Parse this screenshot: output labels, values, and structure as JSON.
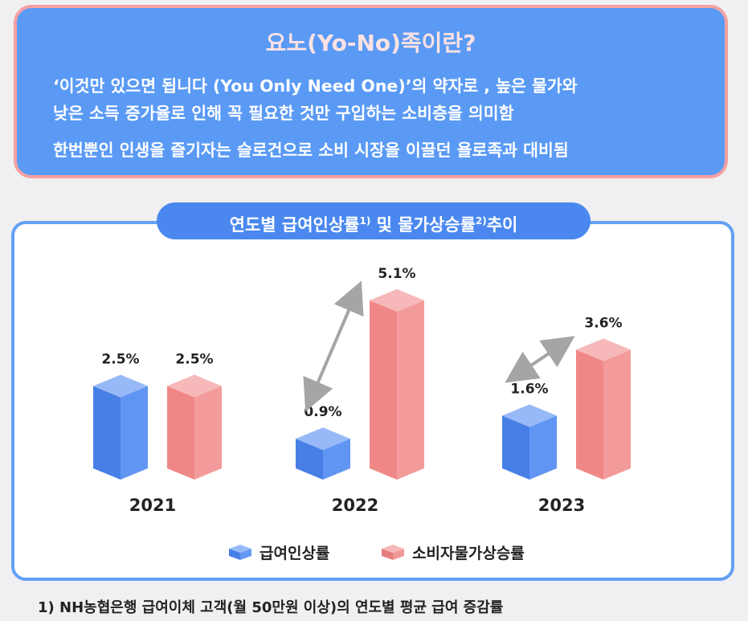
{
  "info": {
    "title": "요노(Yo-No)족이란?",
    "lines": [
      "‘이것만 있으면 됩니다 (You Only Need One)’의 약자로 , 높은 물가와",
      "낮은 소득 증가율로 인해 꼭 필요한 것만 구입하는 소비층을 의미함",
      "한번뿐인 인생을 즐기자는 슬로건으로 소비 시장을 이끌던 욜로족과 대비됨"
    ]
  },
  "chart_header": {
    "part1": "연도별 급여인상률",
    "sup1": "1)",
    "part2": " 및 물가상승률",
    "sup2": "2)",
    "part3": "추이"
  },
  "chart_data": {
    "type": "bar",
    "categories": [
      "2021",
      "2022",
      "2023"
    ],
    "series": [
      {
        "name": "급여인상률",
        "values": [
          2.5,
          0.9,
          1.6
        ],
        "labels": [
          "2.5%",
          "0.9%",
          "1.6%"
        ],
        "color": "#4b86f2"
      },
      {
        "name": "소비자물가상승률",
        "values": [
          2.5,
          5.1,
          3.6
        ],
        "labels": [
          "2.5%",
          "5.1%",
          "3.6%"
        ],
        "color": "#f08585"
      }
    ],
    "gap_arrows": [
      false,
      true,
      true
    ],
    "legend_position": "bottom",
    "grid": false
  },
  "footnote": "1)  NH농협은행 급여이체 고객(월 50만원 이상)의 연도별 평균 급여 증감률"
}
